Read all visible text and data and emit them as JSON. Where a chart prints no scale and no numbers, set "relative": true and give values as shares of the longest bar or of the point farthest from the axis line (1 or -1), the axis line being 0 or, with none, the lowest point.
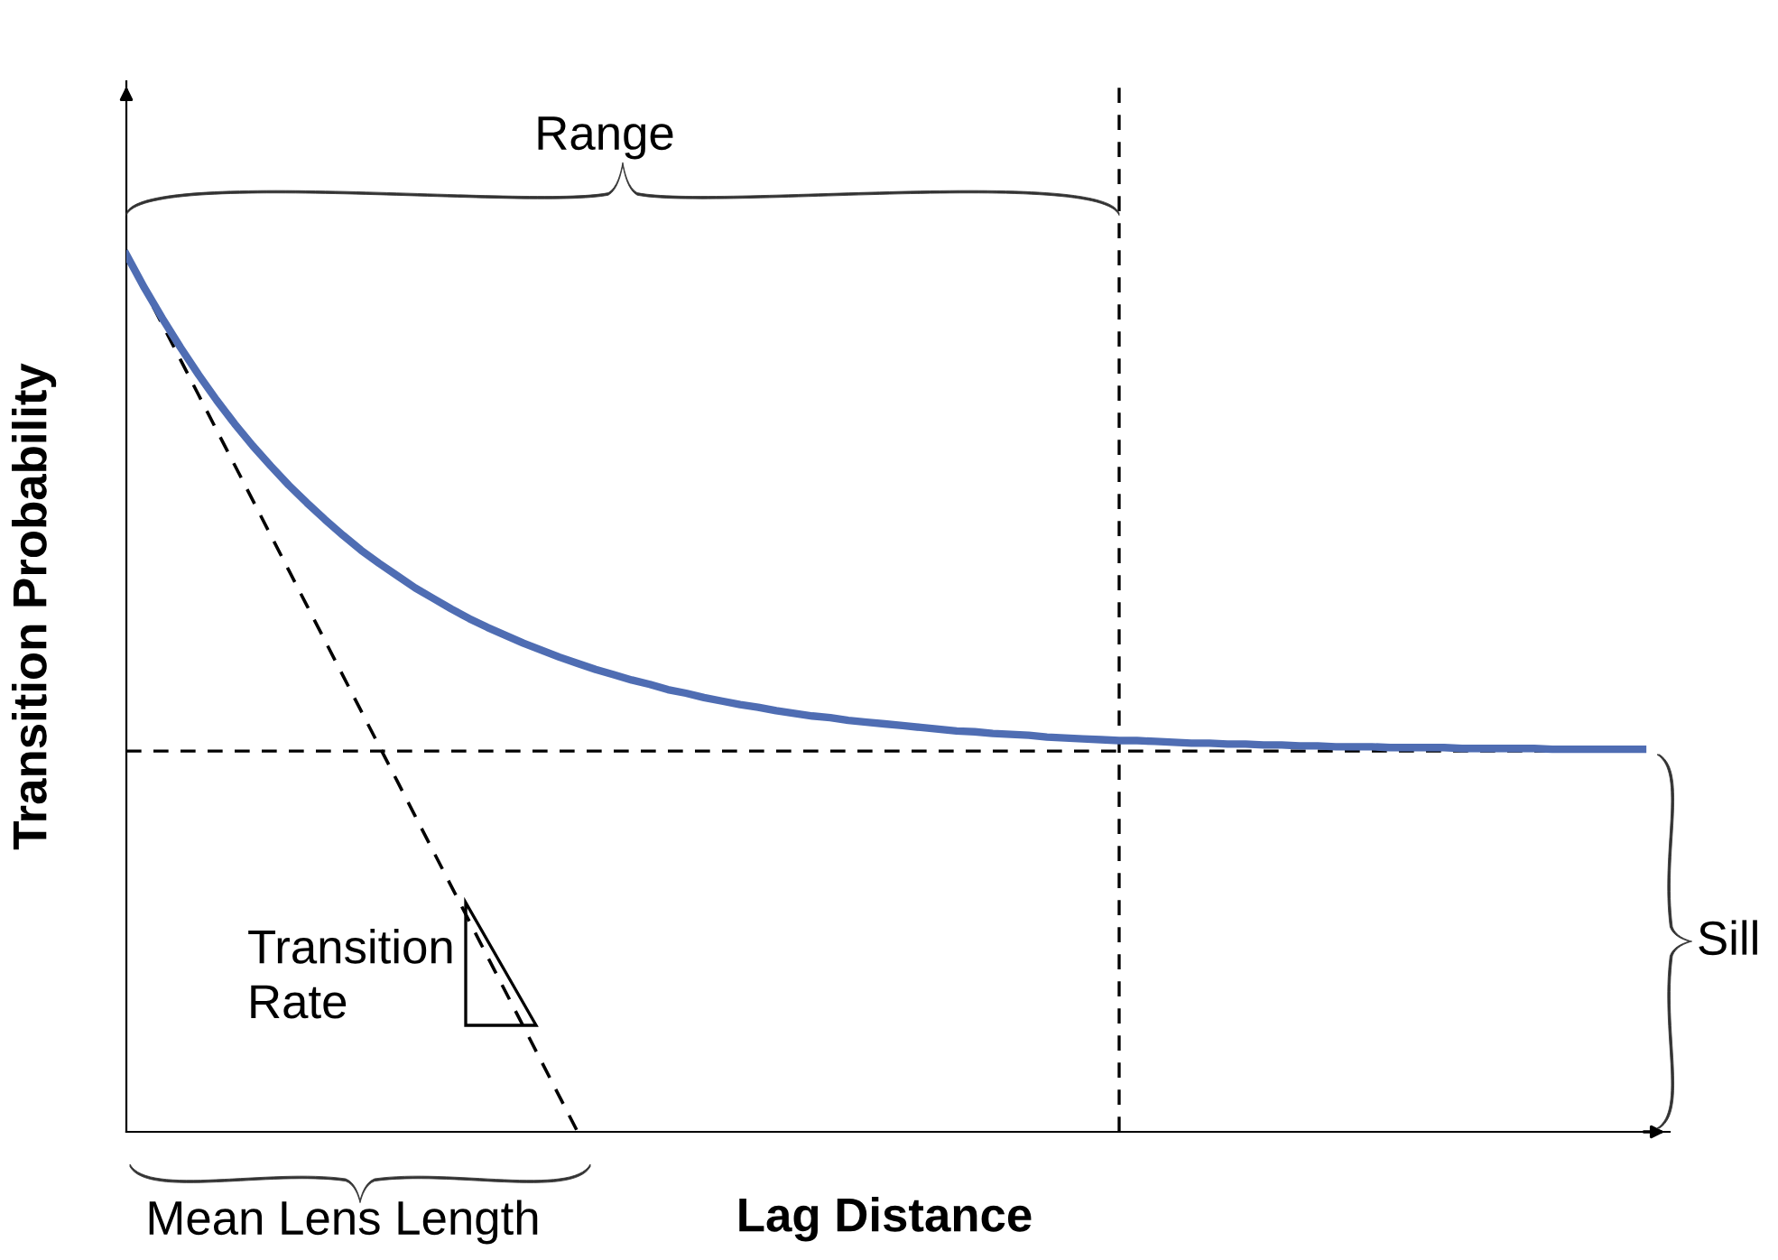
{
  "chart_data": {
    "type": "line",
    "relative": true,
    "xlabel": "Lag Distance",
    "ylabel": "Transition Probability",
    "categories": [
      null,
      null,
      null,
      null,
      null,
      null,
      null,
      null,
      null,
      null,
      null,
      null,
      null,
      null,
      null,
      null,
      null,
      null,
      null,
      null,
      null,
      null,
      null,
      null,
      null,
      null,
      null,
      null,
      null,
      null,
      null,
      null,
      null,
      null,
      null,
      null,
      null,
      null,
      null,
      null,
      null,
      null,
      null,
      null,
      null,
      null,
      null,
      null,
      null,
      null,
      null,
      null,
      null,
      null,
      null,
      null,
      null,
      null,
      null,
      null,
      null,
      null,
      null,
      null,
      null,
      null,
      null,
      null,
      null,
      null,
      null,
      null,
      null,
      null,
      null,
      null,
      null,
      null,
      null,
      null,
      null,
      null,
      null,
      null,
      null
    ],
    "series": [
      {
        "color": "#4f6db3",
        "values": [
          1.0,
          0.962,
          0.927,
          0.894,
          0.863,
          0.834,
          0.807,
          0.782,
          0.759,
          0.737,
          0.717,
          0.698,
          0.68,
          0.663,
          0.648,
          0.634,
          0.62,
          0.608,
          0.596,
          0.585,
          0.575,
          0.566,
          0.557,
          0.549,
          0.541,
          0.534,
          0.527,
          0.521,
          0.515,
          0.51,
          0.504,
          0.5,
          0.495,
          0.491,
          0.487,
          0.484,
          0.48,
          0.477,
          0.474,
          0.472,
          0.469,
          0.467,
          0.465,
          0.463,
          0.461,
          0.459,
          0.457,
          0.456,
          0.454,
          0.453,
          0.452,
          0.45,
          0.449,
          0.448,
          0.447,
          0.446,
          0.446,
          0.445,
          0.444,
          0.443,
          0.443,
          0.442,
          0.442,
          0.441,
          0.441,
          0.44,
          0.44,
          0.439,
          0.439,
          0.439,
          0.438,
          0.438,
          0.438,
          0.438,
          0.437,
          0.437,
          0.437,
          0.437,
          0.437,
          0.436,
          0.436,
          0.436,
          0.436,
          0.436,
          0.436
        ]
      },
      {
        "color": "#000000",
        "line_style": "dashed",
        "values": [
          1.0,
          0.96,
          0.92,
          0.88,
          0.84,
          0.8,
          0.76,
          0.72,
          0.68,
          0.64,
          0.6,
          0.56,
          0.52,
          0.48,
          0.44,
          0.4,
          0.36,
          0.32,
          0.28,
          0.24,
          0.2,
          0.16,
          0.12,
          0.08,
          0.04,
          0.0,
          null,
          null,
          null,
          null,
          null,
          null,
          null,
          null,
          null,
          null,
          null,
          null,
          null,
          null,
          null,
          null,
          null,
          null,
          null,
          null,
          null,
          null,
          null,
          null,
          null,
          null,
          null,
          null,
          null,
          null,
          null,
          null,
          null,
          null,
          null,
          null,
          null,
          null,
          null,
          null,
          null,
          null,
          null,
          null,
          null,
          null,
          null,
          null,
          null,
          null,
          null,
          null,
          null,
          null,
          null,
          null,
          null,
          null,
          null
        ]
      }
    ],
    "ref_lines": [
      {
        "axis": "y",
        "value": 0.434,
        "color": "#000000",
        "line_style": "dashed"
      }
    ],
    "annotations": [
      "Range",
      "Mean Lens Length",
      "Sill",
      "Transition\nRate"
    ]
  }
}
